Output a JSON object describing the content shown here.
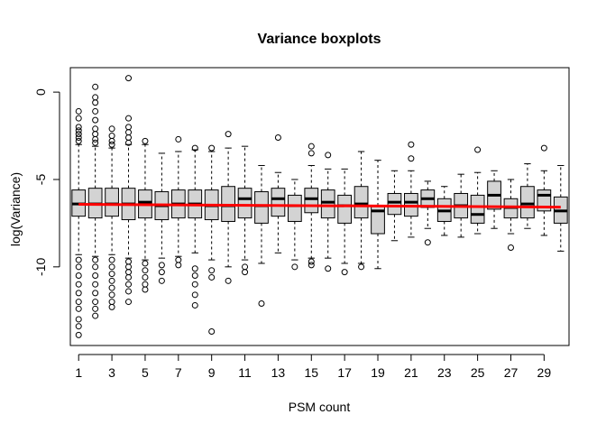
{
  "chart_data": {
    "type": "boxplot",
    "title": "Variance boxplots",
    "xlabel": "PSM count",
    "ylabel": "log(Variance)",
    "xlim": [
      0.5,
      30.5
    ],
    "ylim": [
      -14.5,
      1.4
    ],
    "x_ticks": [
      1,
      3,
      5,
      7,
      9,
      11,
      13,
      15,
      17,
      19,
      21,
      23,
      25,
      27,
      29
    ],
    "y_ticks": [
      0,
      -5,
      -10
    ],
    "box_fill": "#d3d3d3",
    "trend_color": "#ff0000",
    "boxes": [
      {
        "x": 1,
        "q1": -7.1,
        "median": -6.4,
        "q3": -5.6,
        "whisker_low": -9.3,
        "whisker_high": -3.0,
        "outliers": [
          -2.0,
          -2.2,
          -2.4,
          -2.6,
          -2.8,
          -1.5,
          -1.1,
          -9.6,
          -10.0,
          -10.5,
          -11.0,
          -11.5,
          -12.0,
          -12.4,
          -13.0,
          -13.4,
          -13.9
        ]
      },
      {
        "x": 2,
        "q1": -7.2,
        "median": -6.4,
        "q3": -5.5,
        "whisker_low": -9.4,
        "whisker_high": -3.1,
        "outliers": [
          0.3,
          -0.3,
          -0.6,
          -1.1,
          -1.6,
          -2.1,
          -2.4,
          -2.7,
          -2.9,
          -9.6,
          -10.0,
          -10.5,
          -11.0,
          -11.5,
          -12.0,
          -12.4,
          -12.8
        ]
      },
      {
        "x": 3,
        "q1": -7.1,
        "median": -6.4,
        "q3": -5.5,
        "whisker_low": -9.3,
        "whisker_high": -3.2,
        "outliers": [
          -2.1,
          -2.5,
          -2.8,
          -3.0,
          -9.6,
          -10.0,
          -10.4,
          -10.8,
          -11.2,
          -11.6,
          -12.0,
          -12.3
        ]
      },
      {
        "x": 4,
        "q1": -7.3,
        "median": -6.4,
        "q3": -5.5,
        "whisker_low": -9.5,
        "whisker_high": -3.0,
        "outliers": [
          0.8,
          -1.5,
          -2.0,
          -2.3,
          -2.6,
          -2.9,
          -9.7,
          -10.0,
          -10.3,
          -10.6,
          -11.0,
          -11.4,
          -12.0
        ]
      },
      {
        "x": 5,
        "q1": -7.2,
        "median": -6.3,
        "q3": -5.6,
        "whisker_low": -9.6,
        "whisker_high": -3.0,
        "outliers": [
          -2.8,
          -9.8,
          -10.2,
          -10.6,
          -11.0,
          -11.3
        ]
      },
      {
        "x": 6,
        "q1": -7.3,
        "median": -6.5,
        "q3": -5.7,
        "whisker_low": -9.5,
        "whisker_high": -3.5,
        "outliers": [
          -9.9,
          -10.3,
          -10.8
        ]
      },
      {
        "x": 7,
        "q1": -7.2,
        "median": -6.4,
        "q3": -5.6,
        "whisker_low": -9.4,
        "whisker_high": -3.4,
        "outliers": [
          -2.7,
          -9.6,
          -9.9
        ]
      },
      {
        "x": 8,
        "q1": -7.2,
        "median": -6.4,
        "q3": -5.6,
        "whisker_low": -9.2,
        "whisker_high": -3.3,
        "outliers": [
          -3.2,
          -10.1,
          -10.5,
          -11.0,
          -11.6,
          -12.2
        ]
      },
      {
        "x": 9,
        "q1": -7.3,
        "median": -6.5,
        "q3": -5.6,
        "whisker_low": -9.6,
        "whisker_high": -3.4,
        "outliers": [
          -3.2,
          -10.2,
          -10.6,
          -13.7
        ]
      },
      {
        "x": 10,
        "q1": -7.4,
        "median": -6.5,
        "q3": -5.4,
        "whisker_low": -10.0,
        "whisker_high": -3.2,
        "outliers": [
          -2.4,
          -10.8
        ]
      },
      {
        "x": 11,
        "q1": -7.2,
        "median": -6.1,
        "q3": -5.5,
        "whisker_low": -9.6,
        "whisker_high": -3.1,
        "outliers": [
          -10.0,
          -10.3
        ]
      },
      {
        "x": 12,
        "q1": -7.5,
        "median": -6.5,
        "q3": -5.7,
        "whisker_low": -9.8,
        "whisker_high": -4.2,
        "outliers": [
          -12.1
        ]
      },
      {
        "x": 13,
        "q1": -7.1,
        "median": -6.1,
        "q3": -5.5,
        "whisker_low": -9.2,
        "whisker_high": -4.6,
        "outliers": [
          -2.6
        ]
      },
      {
        "x": 14,
        "q1": -7.4,
        "median": -6.5,
        "q3": -5.9,
        "whisker_low": -9.6,
        "whisker_high": -5.0,
        "outliers": [
          -10.0
        ]
      },
      {
        "x": 15,
        "q1": -6.9,
        "median": -6.1,
        "q3": -5.5,
        "whisker_low": -9.5,
        "whisker_high": -4.2,
        "outliers": [
          -3.1,
          -3.5,
          -9.7,
          -9.9
        ]
      },
      {
        "x": 16,
        "q1": -7.2,
        "median": -6.3,
        "q3": -5.6,
        "whisker_low": -9.5,
        "whisker_high": -4.4,
        "outliers": [
          -3.6,
          -10.1
        ]
      },
      {
        "x": 17,
        "q1": -7.5,
        "median": -6.5,
        "q3": -5.9,
        "whisker_low": -9.8,
        "whisker_high": -4.4,
        "outliers": [
          -10.3
        ]
      },
      {
        "x": 18,
        "q1": -7.2,
        "median": -6.4,
        "q3": -5.4,
        "whisker_low": -9.8,
        "whisker_high": -3.4,
        "outliers": [
          -10.0
        ]
      },
      {
        "x": 19,
        "q1": -8.1,
        "median": -6.8,
        "q3": -6.5,
        "whisker_low": -10.1,
        "whisker_high": -3.9,
        "outliers": []
      },
      {
        "x": 20,
        "q1": -7.0,
        "median": -6.3,
        "q3": -5.8,
        "whisker_low": -8.5,
        "whisker_high": -4.5,
        "outliers": []
      },
      {
        "x": 21,
        "q1": -7.1,
        "median": -6.3,
        "q3": -5.8,
        "whisker_low": -8.3,
        "whisker_high": -4.5,
        "outliers": [
          -3.0,
          -3.8
        ]
      },
      {
        "x": 22,
        "q1": -6.6,
        "median": -6.1,
        "q3": -5.6,
        "whisker_low": -7.8,
        "whisker_high": -5.1,
        "outliers": [
          -8.6
        ]
      },
      {
        "x": 23,
        "q1": -7.4,
        "median": -6.8,
        "q3": -6.1,
        "whisker_low": -8.2,
        "whisker_high": -5.4,
        "outliers": []
      },
      {
        "x": 24,
        "q1": -7.2,
        "median": -6.5,
        "q3": -5.8,
        "whisker_low": -8.3,
        "whisker_high": -4.7,
        "outliers": []
      },
      {
        "x": 25,
        "q1": -7.5,
        "median": -7.0,
        "q3": -5.9,
        "whisker_low": -8.1,
        "whisker_high": -4.6,
        "outliers": [
          -3.3
        ]
      },
      {
        "x": 26,
        "q1": -6.7,
        "median": -5.9,
        "q3": -5.1,
        "whisker_low": -7.8,
        "whisker_high": -4.5,
        "outliers": []
      },
      {
        "x": 27,
        "q1": -7.2,
        "median": -6.6,
        "q3": -6.1,
        "whisker_low": -8.1,
        "whisker_high": -5.0,
        "outliers": [
          -8.9
        ]
      },
      {
        "x": 28,
        "q1": -7.2,
        "median": -6.4,
        "q3": -5.4,
        "whisker_low": -7.8,
        "whisker_high": -4.1,
        "outliers": []
      },
      {
        "x": 29,
        "q1": -6.8,
        "median": -5.9,
        "q3": -5.6,
        "whisker_low": -8.2,
        "whisker_high": -4.5,
        "outliers": [
          -3.2
        ]
      },
      {
        "x": 30,
        "q1": -7.5,
        "median": -6.8,
        "q3": -6.0,
        "whisker_low": -9.1,
        "whisker_high": -4.2,
        "outliers": []
      }
    ],
    "trend_line": {
      "x": [
        1,
        30
      ],
      "y": [
        -6.42,
        -6.58
      ]
    }
  }
}
